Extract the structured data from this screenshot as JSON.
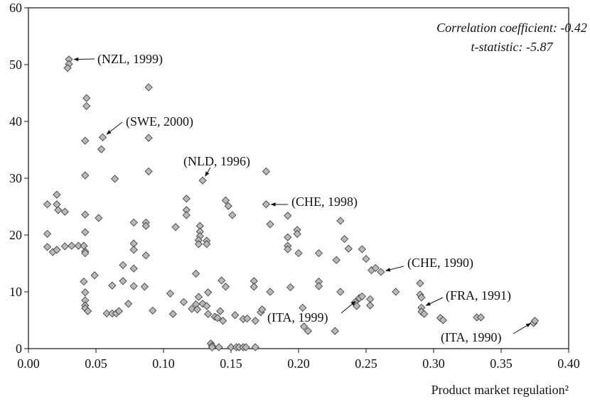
{
  "chart_data": {
    "type": "scatter",
    "xlabel": "Product market regulation²",
    "stats": [
      "Correlation coefficient: -0.42",
      "t-statistic: -5.87"
    ],
    "color": "#b9b9b9",
    "xlim": [
      0,
      0.4
    ],
    "ylim": [
      0,
      60
    ],
    "xticks": [
      {
        "value": 0,
        "label": "0.00"
      },
      {
        "value": 0.05,
        "label": "0.05"
      },
      {
        "value": 0.1,
        "label": "0.10"
      },
      {
        "value": 0.15,
        "label": "0.15"
      },
      {
        "value": 0.2,
        "label": "0.20"
      },
      {
        "value": 0.25,
        "label": "0.25"
      },
      {
        "value": 0.3,
        "label": "0.30"
      },
      {
        "value": 0.35,
        "label": "0.35"
      },
      {
        "value": 0.4,
        "label": "0.40"
      }
    ],
    "yticks": [
      0,
      10,
      20,
      30,
      40,
      50,
      60
    ],
    "x": [
      0.014,
      0.014,
      0.014,
      0.018,
      0.021,
      0.021,
      0.021,
      0.022,
      0.027,
      0.027,
      0.03,
      0.03,
      0.029,
      0.032,
      0.037,
      0.041,
      0.042,
      0.042,
      0.042,
      0.042,
      0.042,
      0.043,
      0.043,
      0.042,
      0.041,
      0.042,
      0.042,
      0.042,
      0.042,
      0.044,
      0.049,
      0.052,
      0.055,
      0.054,
      0.058,
      0.062,
      0.062,
      0.064,
      0.065,
      0.067,
      0.07,
      0.07,
      0.074,
      0.078,
      0.078,
      0.078,
      0.078,
      0.078,
      0.087,
      0.087,
      0.087,
      0.086,
      0.089,
      0.089,
      0.089,
      0.092,
      0.105,
      0.107,
      0.109,
      0.115,
      0.117,
      0.117,
      0.117,
      0.121,
      0.124,
      0.124,
      0.125,
      0.126,
      0.127,
      0.127,
      0.127,
      0.126,
      0.126,
      0.129,
      0.129,
      0.132,
      0.132,
      0.132,
      0.133,
      0.133,
      0.135,
      0.136,
      0.136,
      0.138,
      0.14,
      0.141,
      0.142,
      0.143,
      0.144,
      0.146,
      0.146,
      0.148,
      0.15,
      0.151,
      0.153,
      0.154,
      0.156,
      0.159,
      0.159,
      0.161,
      0.162,
      0.167,
      0.167,
      0.168,
      0.168,
      0.172,
      0.173,
      0.176,
      0.176,
      0.179,
      0.179,
      0.192,
      0.192,
      0.192,
      0.192,
      0.194,
      0.199,
      0.199,
      0.2,
      0.203,
      0.204,
      0.207,
      0.215,
      0.215,
      0.215,
      0.228,
      0.227,
      0.231,
      0.231,
      0.234,
      0.237,
      0.242,
      0.243,
      0.245,
      0.247,
      0.247,
      0.25,
      0.253,
      0.253,
      0.254,
      0.257,
      0.261,
      0.272,
      0.29,
      0.29,
      0.291,
      0.291,
      0.291,
      0.293,
      0.305,
      0.307,
      0.332,
      0.335,
      0.374,
      0.375
    ],
    "values": [
      25.4,
      20.2,
      17.9,
      17.0,
      17.4,
      27.1,
      25.4,
      24.4,
      24.1,
      18.0,
      50.9,
      50.1,
      49.4,
      18.1,
      18.1,
      18.1,
      17.1,
      23.6,
      20.5,
      30.5,
      36.6,
      44.1,
      42.7,
      16.8,
      11.8,
      9.9,
      8.5,
      7.6,
      7.1,
      6.6,
      12.9,
      23.0,
      37.2,
      35.1,
      6.2,
      6.2,
      11.1,
      29.9,
      6.2,
      6.6,
      14.7,
      11.9,
      7.9,
      22.2,
      18.5,
      17.4,
      14.1,
      11.0,
      22.2,
      21.6,
      16.4,
      10.9,
      46.0,
      37.1,
      31.2,
      6.7,
      9.7,
      6.1,
      21.4,
      8.2,
      26.4,
      24.4,
      23.5,
      7.0,
      7.8,
      13.2,
      6.9,
      9.1,
      21.6,
      20.6,
      19.8,
      19.1,
      18.4,
      29.6,
      7.9,
      7.5,
      19.0,
      18.4,
      6.1,
      9.9,
      0.9,
      0.5,
      0.25,
      5.6,
      5.4,
      0.25,
      6.6,
      12.0,
      4.9,
      26.1,
      10.9,
      25.1,
      0.25,
      23.5,
      5.9,
      0.25,
      0.25,
      5.2,
      0.25,
      0.25,
      5.3,
      11.9,
      10.9,
      4.9,
      0.25,
      6.4,
      6.9,
      25.4,
      31.2,
      21.9,
      10.0,
      19.6,
      18.1,
      23.4,
      17.5,
      10.8,
      20.9,
      20.2,
      16.8,
      7.2,
      3.9,
      3.1,
      16.8,
      11.8,
      11.0,
      15.6,
      3.1,
      22.5,
      10.0,
      19.3,
      17.6,
      8.2,
      7.5,
      8.9,
      9.2,
      17.5,
      15.8,
      8.7,
      7.6,
      13.8,
      14.2,
      13.5,
      10.0,
      11.5,
      9.5,
      9.0,
      7.2,
      6.5,
      6.1,
      5.4,
      5.0,
      5.5,
      5.5,
      4.5,
      4.9
    ],
    "annotations": [
      {
        "text": "(NZL, 1999)",
        "x": 0.03,
        "y": 50.9
      },
      {
        "text": "(SWE, 2000)",
        "x": 0.055,
        "y": 37.2
      },
      {
        "text": "(NLD, 1996)",
        "x": 0.129,
        "y": 29.6
      },
      {
        "text": "(CHE, 1998)",
        "x": 0.176,
        "y": 25.4
      },
      {
        "text": "(ITA, 1999)",
        "x": 0.245,
        "y": 8.9
      },
      {
        "text": "(CHE, 1990)",
        "x": 0.261,
        "y": 13.5
      },
      {
        "text": "(FRA, 1991)",
        "x": 0.291,
        "y": 7.2
      },
      {
        "text": "(ITA, 1990)",
        "x": 0.375,
        "y": 4.9
      }
    ]
  }
}
